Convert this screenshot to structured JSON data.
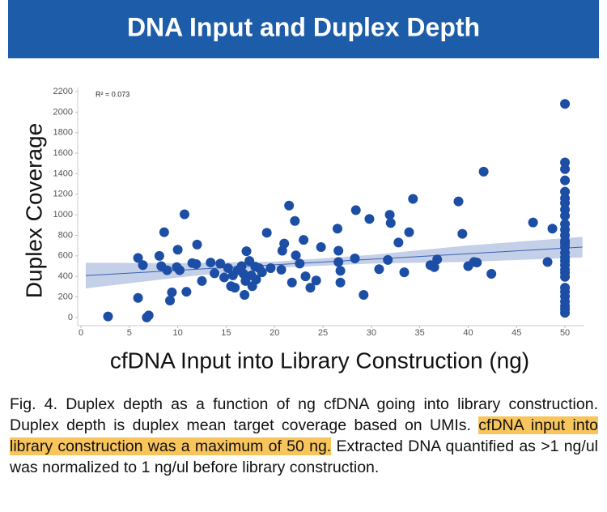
{
  "chart_data": {
    "type": "scatter",
    "title": "DNA Input and Duplex Depth",
    "annotation": "R² = 0.073",
    "x_label": "cfDNA Input into Library Construction (ng)",
    "y_label": "Duplex Coverage",
    "color": "#1c4ea6",
    "x": [
      2.8,
      5.9,
      6.4,
      5.9,
      6.8,
      7,
      8.1,
      8.6,
      8.3,
      8.9,
      9.2,
      9.4,
      10,
      9.9,
      10.2,
      10.7,
      10.9,
      11.5,
      12,
      11.9,
      12.5,
      13.4,
      13.8,
      14.4,
      14.8,
      15.2,
      15.5,
      15.7,
      15.9,
      16.2,
      16.6,
      16.8,
      17,
      17.1,
      17.4,
      16.9,
      17.6,
      17.7,
      18,
      18.1,
      18.4,
      18.7,
      19.2,
      19.6,
      20.7,
      20.8,
      21,
      21.5,
      22.1,
      21.8,
      22.2,
      22.6,
      23,
      23.2,
      23.7,
      24.3,
      24.8,
      26.5,
      26.6,
      26.6,
      26.8,
      26.8,
      28.4,
      28.3,
      29.2,
      29.8,
      30.8,
      31.9,
      32,
      31.7,
      32.8,
      33.4,
      33.9,
      34.3,
      36.1,
      36.5,
      36.8,
      39,
      39.4,
      40,
      40.6,
      40.9,
      41.6,
      42.4,
      46.7,
      48.2,
      48.7,
      50,
      50,
      50,
      50,
      50,
      50,
      50,
      50,
      50,
      50,
      50,
      50,
      50,
      50,
      50,
      50,
      50,
      50,
      50,
      50,
      50,
      50,
      50,
      50,
      50,
      50,
      50,
      50,
      50
    ],
    "values": [
      10,
      580,
      510,
      190,
      0,
      20,
      600,
      830,
      500,
      460,
      165,
      245,
      660,
      490,
      460,
      1005,
      250,
      530,
      710,
      520,
      355,
      535,
      430,
      525,
      390,
      480,
      305,
      410,
      290,
      460,
      500,
      425,
      355,
      645,
      550,
      220,
      410,
      305,
      495,
      370,
      480,
      440,
      825,
      480,
      465,
      650,
      720,
      1090,
      940,
      340,
      605,
      525,
      755,
      400,
      290,
      360,
      685,
      865,
      650,
      540,
      340,
      455,
      1045,
      575,
      220,
      960,
      470,
      1000,
      920,
      560,
      730,
      440,
      830,
      1155,
      510,
      490,
      565,
      1130,
      815,
      500,
      540,
      535,
      1420,
      425,
      925,
      540,
      865,
      2080,
      1510,
      1445,
      1335,
      1225,
      1160,
      1115,
      1050,
      990,
      910,
      855,
      800,
      745,
      720,
      685,
      630,
      585,
      550,
      510,
      465,
      435,
      395,
      290,
      250,
      205,
      155,
      110,
      80,
      45
    ],
    "trend": {
      "x": [
        0.5,
        10,
        20,
        30,
        40,
        51.8
      ],
      "values": [
        408,
        459,
        513,
        567,
        621,
        685
      ],
      "lower": [
        283,
        389,
        483,
        525,
        541,
        585
      ],
      "upper": [
        533,
        529,
        543,
        609,
        701,
        785
      ]
    },
    "xlim": [
      0,
      52
    ],
    "ylim": [
      -80,
      2240
    ],
    "xticks": [
      0,
      5,
      10,
      15,
      20,
      25,
      30,
      35,
      40,
      45,
      50
    ],
    "yticks": [
      0,
      200,
      400,
      600,
      800,
      1000,
      1200,
      1400,
      1600,
      1800,
      2000,
      2200
    ]
  },
  "caption": [
    "Fig. 4.  Duplex depth as a function of ng cfDNA going into library construction.  Duplex depth is duplex mean target coverage based on UMIs. ",
    "cfDNA input into library construction was a maximum of 50 ng.",
    " Extracted DNA quantified as >1 ng/ul was normalized to 1 ng/ul before library construction."
  ]
}
